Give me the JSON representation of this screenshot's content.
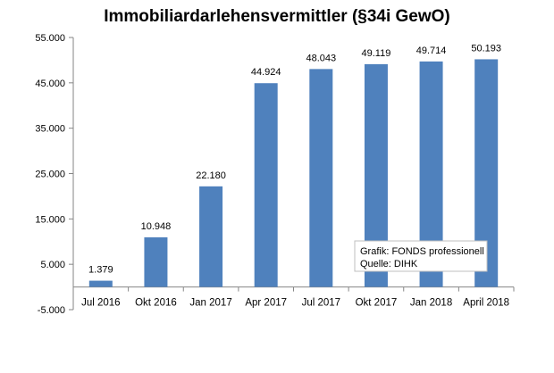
{
  "chart_data": {
    "type": "bar",
    "title": "Immobiliardarlehensvermittler (§34i GewO)",
    "xlabel": "",
    "ylabel": "",
    "categories": [
      "Jul 2016",
      "Okt 2016",
      "Jan 2017",
      "Apr 2017",
      "Jul 2017",
      "Okt 2017",
      "Jan 2018",
      "April 2018"
    ],
    "values": [
      1379,
      10948,
      22180,
      44924,
      48043,
      49119,
      49714,
      50193
    ],
    "value_labels": [
      "1.379",
      "10.948",
      "22.180",
      "44.924",
      "48.043",
      "49.119",
      "49.714",
      "50.193"
    ],
    "ylim": [
      -5000,
      55000
    ],
    "yticks": [
      -5000,
      5000,
      15000,
      25000,
      35000,
      45000,
      55000
    ],
    "ytick_labels": [
      "-5.000",
      "5.000",
      "15.000",
      "25.000",
      "35.000",
      "45.000",
      "55.000"
    ],
    "bar_color": "#4F81BD",
    "grid": false,
    "legend": "none",
    "annotation": {
      "line1": "Grafik: FONDS professionell",
      "line2": "Quelle: DIHK",
      "placement": "bottom-right"
    }
  }
}
